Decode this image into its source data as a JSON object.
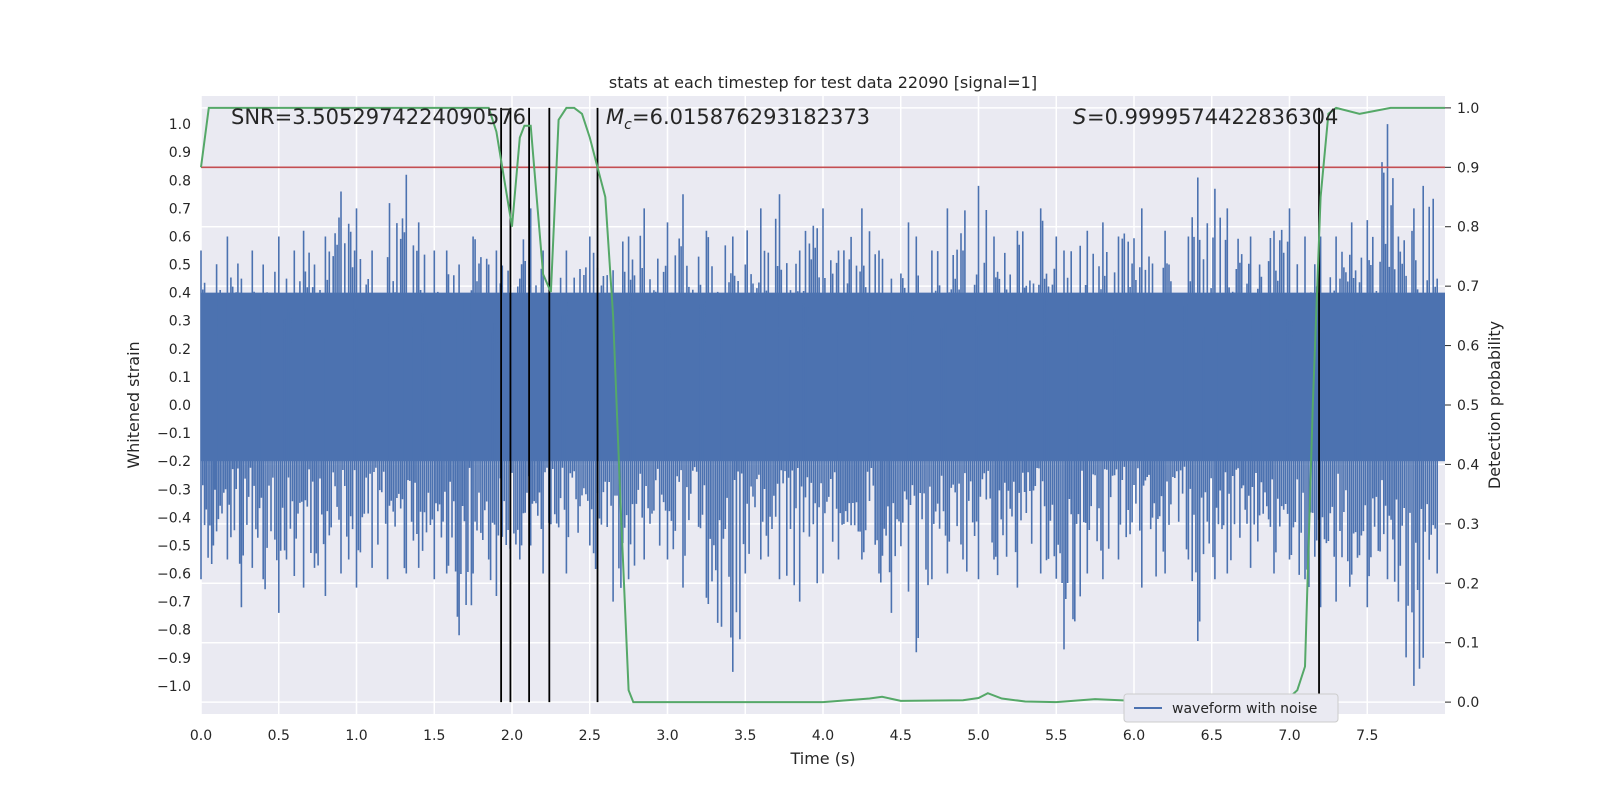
{
  "chart_data": {
    "type": "line",
    "title": "stats at each timestep for test data 22090 [signal=1]",
    "xlabel": "Time (s)",
    "ylabel": "Whitened strain",
    "y2label": "Detection probability",
    "xlim": [
      0.0,
      8.0
    ],
    "ylim": [
      -1.1,
      1.1
    ],
    "y2lim": [
      -0.02,
      1.02
    ],
    "xticks": [
      "0.0",
      "0.5",
      "1.0",
      "1.5",
      "2.0",
      "2.5",
      "3.0",
      "3.5",
      "4.0",
      "4.5",
      "5.0",
      "5.5",
      "6.0",
      "6.5",
      "7.0",
      "7.5"
    ],
    "yticks": [
      "1.0",
      "0.9",
      "0.8",
      "0.7",
      "0.6",
      "0.5",
      "0.4",
      "0.3",
      "0.2",
      "0.1",
      "0.0",
      "−0.1",
      "−0.2",
      "−0.3",
      "−0.4",
      "−0.5",
      "−0.6",
      "−0.7",
      "−0.8",
      "−0.9",
      "−1.0"
    ],
    "y2ticks": [
      "1.0",
      "0.9",
      "0.8",
      "0.7",
      "0.6",
      "0.5",
      "0.4",
      "0.3",
      "0.2",
      "0.1",
      "0.0"
    ],
    "annotations": {
      "snr": "SNR=3.5052974224090576",
      "mc_value": "=6.015876293182373",
      "s_value": "=0.9999574422836304"
    },
    "legend": {
      "label": "waveform with noise",
      "placement": "lower-right"
    },
    "threshold_line": {
      "y2": 0.9,
      "color": "#c44e52"
    },
    "vertical_markers_s": [
      1.93,
      1.99,
      2.11,
      2.24,
      2.55,
      7.19
    ],
    "waveform": {
      "name": "waveform with noise",
      "color": "#4c72b0",
      "dense_band": [
        -0.2,
        0.4
      ],
      "peaks": [
        [
          0.0,
          0.55,
          -0.62
        ],
        [
          0.08,
          0.3,
          -0.5
        ],
        [
          0.1,
          0.5,
          -0.45
        ],
        [
          0.17,
          0.6,
          -0.55
        ],
        [
          0.26,
          0.45,
          -0.72
        ],
        [
          0.33,
          0.55,
          -0.58
        ],
        [
          0.4,
          0.5,
          -0.62
        ],
        [
          0.5,
          0.6,
          -0.74
        ],
        [
          0.55,
          0.45,
          -0.55
        ],
        [
          0.6,
          0.55,
          -0.6
        ],
        [
          0.66,
          0.62,
          -0.65
        ],
        [
          0.73,
          0.5,
          -0.58
        ],
        [
          0.8,
          0.6,
          -0.68
        ],
        [
          0.9,
          0.76,
          -0.6
        ],
        [
          0.95,
          0.5,
          -0.55
        ],
        [
          1.0,
          0.7,
          -0.65
        ],
        [
          1.1,
          0.55,
          -0.58
        ],
        [
          1.2,
          0.5,
          -0.62
        ],
        [
          1.32,
          0.82,
          -0.6
        ],
        [
          1.4,
          0.65,
          -0.58
        ],
        [
          1.5,
          0.55,
          -0.62
        ],
        [
          1.58,
          0.55,
          -0.6
        ],
        [
          1.66,
          0.5,
          -0.82
        ],
        [
          1.75,
          0.6,
          -0.6
        ],
        [
          1.85,
          0.5,
          -0.55
        ],
        [
          1.9,
          0.55,
          -0.68
        ],
        [
          2.05,
          0.45,
          -0.55
        ],
        [
          2.12,
          0.7,
          -0.5
        ],
        [
          2.2,
          0.55,
          -0.6
        ],
        [
          2.35,
          0.55,
          -0.6
        ],
        [
          2.5,
          0.6,
          -0.5
        ],
        [
          2.65,
          0.48,
          -0.7
        ],
        [
          2.75,
          0.6,
          -0.62
        ],
        [
          2.85,
          0.7,
          -0.55
        ],
        [
          3.0,
          0.65,
          -0.55
        ],
        [
          3.1,
          0.75,
          -0.65
        ],
        [
          3.25,
          0.62,
          -0.6
        ],
        [
          3.42,
          0.6,
          -0.95
        ],
        [
          3.5,
          0.5,
          -0.6
        ],
        [
          3.6,
          0.7,
          -0.55
        ],
        [
          3.72,
          0.75,
          -0.62
        ],
        [
          3.85,
          0.55,
          -0.7
        ],
        [
          4.0,
          0.7,
          -0.6
        ],
        [
          4.1,
          0.55,
          -0.55
        ],
        [
          4.25,
          0.7,
          -0.55
        ],
        [
          4.36,
          0.55,
          -0.6
        ],
        [
          4.44,
          0.45,
          -0.74
        ],
        [
          4.55,
          0.65,
          -0.6
        ],
        [
          4.6,
          0.6,
          -0.88
        ],
        [
          4.7,
          0.55,
          -0.62
        ],
        [
          4.8,
          0.7,
          -0.6
        ],
        [
          4.9,
          0.55,
          -0.55
        ],
        [
          5.0,
          0.78,
          -0.62
        ],
        [
          5.1,
          0.6,
          -0.55
        ],
        [
          5.25,
          0.62,
          -0.65
        ],
        [
          5.4,
          0.7,
          -0.6
        ],
        [
          5.5,
          0.6,
          -0.55
        ],
        [
          5.55,
          0.55,
          -0.87
        ],
        [
          5.7,
          0.62,
          -0.6
        ],
        [
          5.8,
          0.65,
          -0.62
        ],
        [
          5.9,
          0.6,
          -0.55
        ],
        [
          6.05,
          0.7,
          -0.65
        ],
        [
          6.2,
          0.62,
          -0.6
        ],
        [
          6.35,
          0.6,
          -0.55
        ],
        [
          6.41,
          0.81,
          -0.84
        ],
        [
          6.52,
          0.77,
          -0.62
        ],
        [
          6.6,
          0.7,
          -0.6
        ],
        [
          6.75,
          0.6,
          -0.58
        ],
        [
          6.9,
          0.62,
          -0.6
        ],
        [
          7.0,
          0.7,
          -0.55
        ],
        [
          7.1,
          0.6,
          -0.62
        ],
        [
          7.2,
          0.6,
          -0.72
        ],
        [
          7.3,
          0.6,
          -0.7
        ],
        [
          7.4,
          0.65,
          -0.6
        ],
        [
          7.5,
          0.62,
          -0.72
        ],
        [
          7.63,
          1.0,
          -0.62
        ],
        [
          7.7,
          0.6,
          -0.7
        ],
        [
          7.8,
          0.7,
          -1.0
        ],
        [
          7.86,
          0.78,
          -0.9
        ],
        [
          7.95,
          0.45,
          -0.6
        ]
      ]
    },
    "detection_probability": {
      "name": "detection probability",
      "color": "#55a868",
      "x": [
        0.0,
        0.05,
        0.3,
        1.0,
        1.5,
        1.85,
        1.9,
        1.95,
        2.0,
        2.05,
        2.08,
        2.12,
        2.2,
        2.25,
        2.3,
        2.35,
        2.4,
        2.45,
        2.5,
        2.55,
        2.6,
        2.65,
        2.7,
        2.75,
        2.78,
        2.85,
        3.0,
        3.5,
        4.0,
        4.3,
        4.38,
        4.5,
        4.9,
        5.0,
        5.06,
        5.15,
        5.3,
        5.5,
        5.75,
        6.0,
        6.5,
        6.9,
        7.0,
        7.05,
        7.1,
        7.15,
        7.2,
        7.25,
        7.3,
        7.45,
        7.55,
        7.65,
        8.0
      ],
      "y": [
        0.9,
        1.0,
        1.0,
        1.0,
        1.0,
        1.0,
        0.96,
        0.88,
        0.8,
        0.95,
        0.97,
        0.97,
        0.72,
        0.69,
        0.98,
        1.0,
        1.0,
        0.99,
        0.95,
        0.9,
        0.85,
        0.65,
        0.32,
        0.02,
        0.0,
        0.0,
        0.0,
        0.0,
        0.0,
        0.006,
        0.009,
        0.002,
        0.003,
        0.007,
        0.015,
        0.006,
        0.001,
        0.0,
        0.005,
        0.002,
        0.0,
        0.003,
        0.008,
        0.02,
        0.06,
        0.5,
        0.85,
        0.99,
        1.0,
        0.99,
        0.995,
        1.0,
        1.0
      ]
    }
  }
}
